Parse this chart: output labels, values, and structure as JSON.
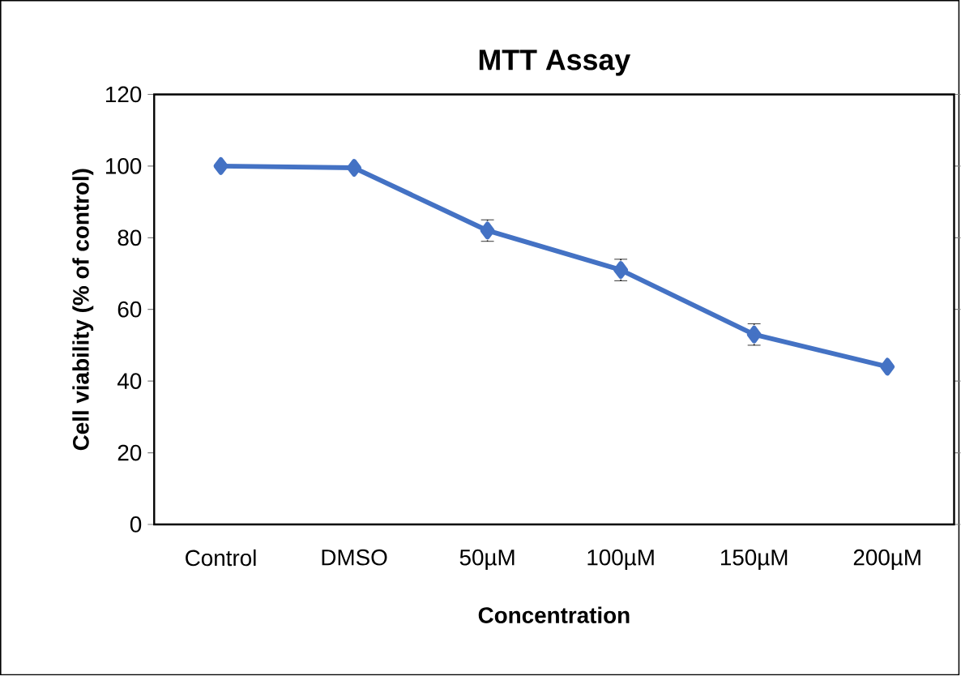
{
  "chart_data": {
    "type": "line",
    "title": "MTT Assay",
    "xlabel": "Concentration",
    "ylabel": "Cell viability (% of control)",
    "categories": [
      "Control",
      "DMSO",
      "50µM",
      "100µM",
      "150µM",
      "200µM"
    ],
    "values": [
      100,
      99.5,
      82,
      71,
      53,
      44
    ],
    "errors": [
      null,
      null,
      3,
      3,
      3,
      null
    ],
    "color": "#4472c4",
    "marker": "diamond",
    "line_style": "solid",
    "ylim": [
      0,
      120
    ],
    "yticks": [
      0,
      20,
      40,
      60,
      80,
      100,
      120
    ],
    "grid": false
  }
}
